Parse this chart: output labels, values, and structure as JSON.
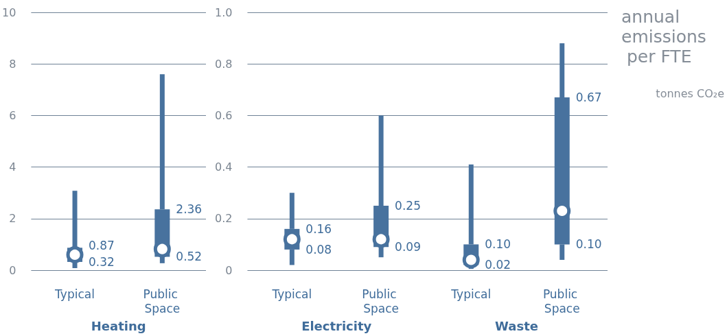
{
  "chart_data": [
    {
      "type": "box",
      "xlabel": "Heating",
      "categories": [
        "Typical",
        "Public Space"
      ],
      "color": "#48729e",
      "ylim": [
        0,
        10
      ],
      "yticks": [
        0,
        2,
        4,
        6,
        8,
        10
      ],
      "grid": "y",
      "boxes": [
        {
          "low": 0.08,
          "q1": 0.32,
          "median": 0.6,
          "q3": 0.87,
          "high": 3.08
        },
        {
          "low": 0.27,
          "q1": 0.52,
          "median": 0.82,
          "q3": 2.36,
          "high": 7.6
        }
      ],
      "annotations": [
        {
          "text": "0.87",
          "x": "Typical",
          "y": 0.87
        },
        {
          "text": "0.32",
          "x": "Typical",
          "y": 0.32
        },
        {
          "text": "2.36",
          "x": "Public Space",
          "y": 2.36
        },
        {
          "text": "0.52",
          "x": "Public Space",
          "y": 0.52
        }
      ]
    },
    {
      "type": "box",
      "xlabel": "Electricity",
      "categories": [
        "Typical",
        "Public Space"
      ],
      "color": "#48729e",
      "ylim": [
        0,
        1.0
      ],
      "yticks": [
        0,
        {
          "value": 0.2,
          "label": "0.2"
        },
        {
          "value": 0.4,
          "label": "0.4"
        },
        {
          "value": 0.6,
          "label": "0.6"
        },
        {
          "value": 0.8,
          "label": "0.8"
        },
        {
          "value": 1.0,
          "label": "1.0"
        }
      ],
      "grid": "y",
      "boxes": [
        {
          "low": 0.02,
          "q1": 0.08,
          "median": 0.12,
          "q3": 0.16,
          "high": 0.3
        },
        {
          "low": 0.05,
          "q1": 0.09,
          "median": 0.12,
          "q3": 0.25,
          "high": 0.6
        }
      ],
      "annotations": [
        {
          "text": "0.16",
          "x": "Typical",
          "y": 0.16
        },
        {
          "text": "0.08",
          "x": "Typical",
          "y": 0.08
        },
        {
          "text": "0.25",
          "x": "Public Space",
          "y": 0.25
        },
        {
          "text": "0.09",
          "x": "Public Space",
          "y": 0.09
        }
      ]
    },
    {
      "type": "box",
      "xlabel": "Waste",
      "categories": [
        "Typical",
        "Public Space"
      ],
      "color": "#48729e",
      "ylim": [
        0,
        1.0
      ],
      "yticks": [
        0,
        0.2,
        0.4,
        0.6,
        0.8,
        1.0
      ],
      "grid": "y",
      "tick_labels": "x",
      "boxes": [
        {
          "low": 0.005,
          "q1": 0.02,
          "median": 0.04,
          "q3": 0.1,
          "high": 0.41
        },
        {
          "low": 0.04,
          "q1": 0.1,
          "median": 0.23,
          "q3": 0.67,
          "high": 0.88
        }
      ],
      "annotations": [
        {
          "text": "0.10",
          "x": "Typical",
          "y": 0.1
        },
        {
          "text": "0.02",
          "x": "Typical",
          "y": 0.02
        },
        {
          "text": "0.67",
          "x": "Public Space",
          "y": 0.67
        },
        {
          "text": "0.10",
          "x": "Public Space",
          "y": 0.1
        }
      ]
    },
    {
      "type": "other",
      "title": "annual emissions per FTE",
      "subtitle": "tonnes CO₂e"
    }
  ]
}
